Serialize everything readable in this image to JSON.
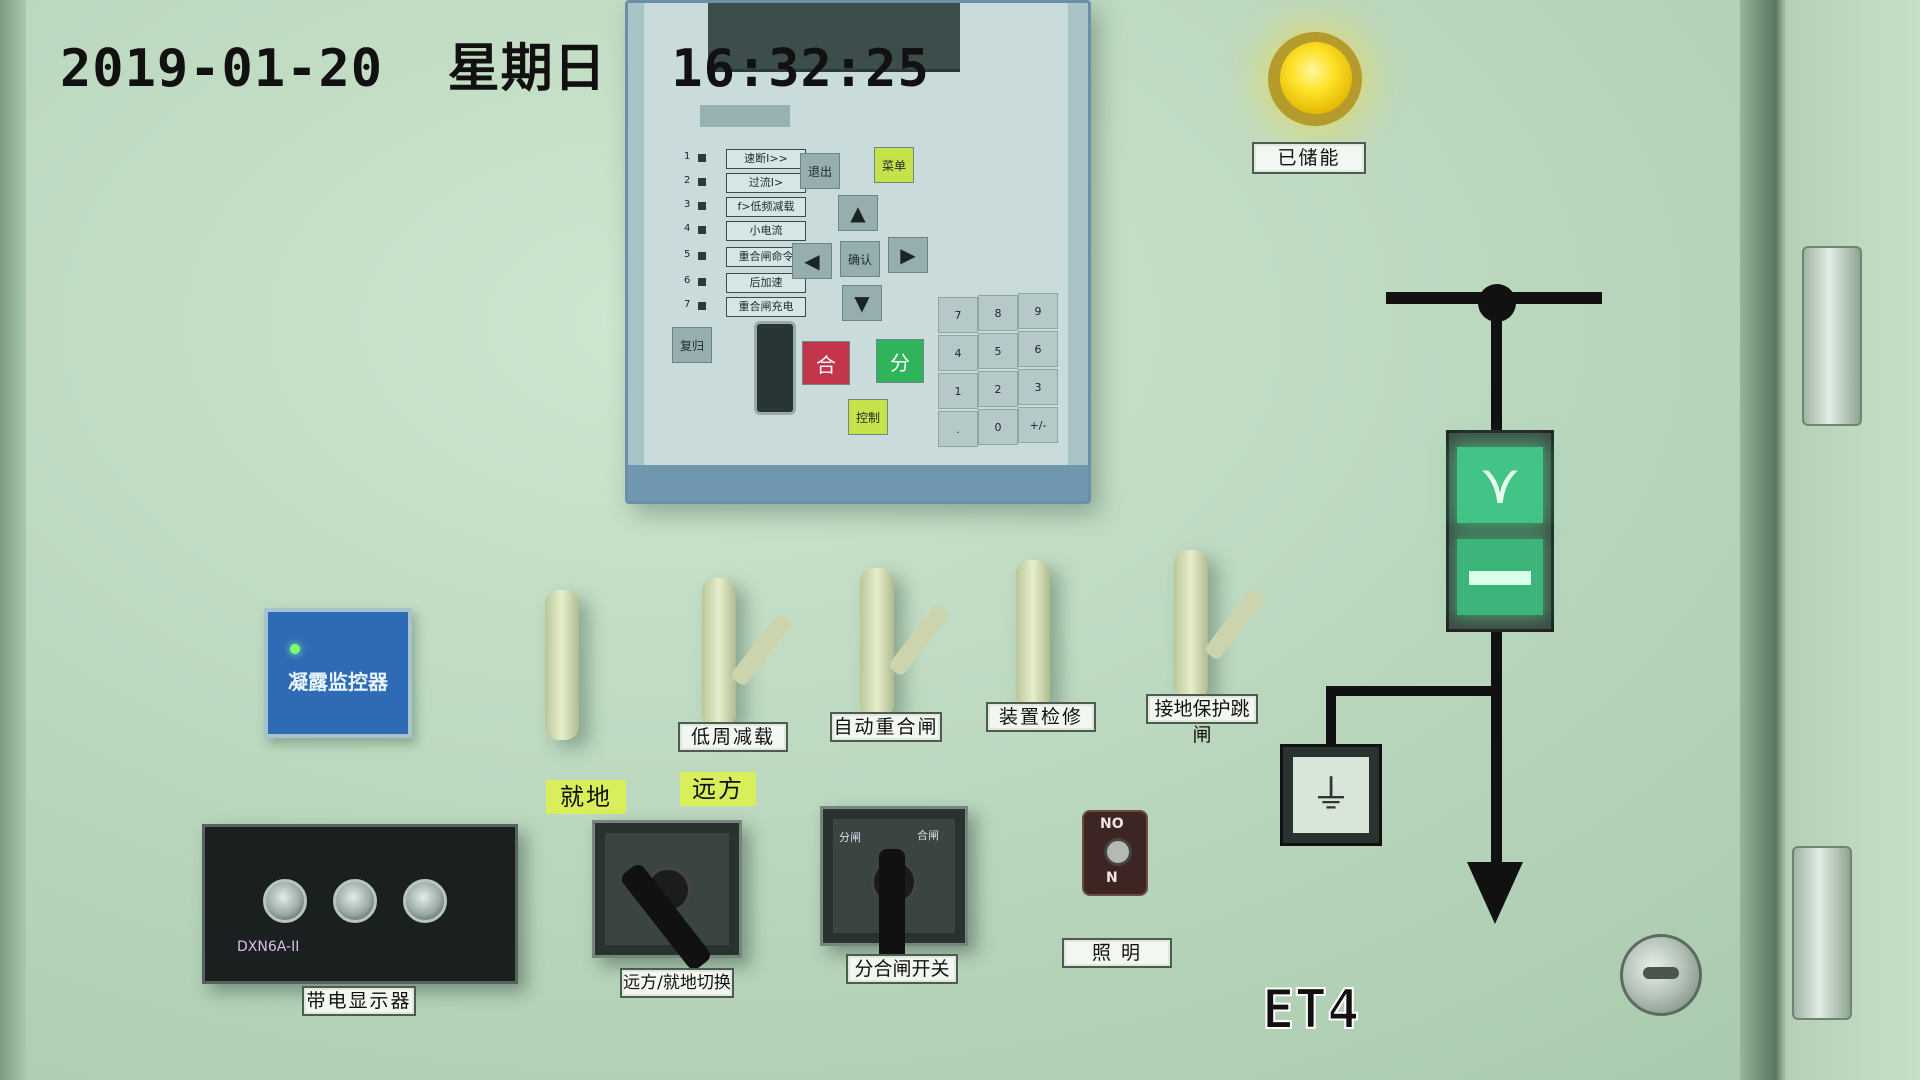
{
  "overlay": {
    "timestamp": "2019-01-20  星期日  16:32:25",
    "camera_label": "ET4"
  },
  "relay_unit": {
    "led_labels": [
      {
        "num": "1",
        "label": "速断I>>"
      },
      {
        "num": "2",
        "label": "过流I>"
      },
      {
        "num": "3",
        "label": "f>低频减载"
      },
      {
        "num": "4",
        "label": "小电流"
      },
      {
        "num": "5",
        "label": "重合闸命令"
      },
      {
        "num": "6",
        "label": "后加速"
      },
      {
        "num": "7",
        "label": "重合闸充电"
      }
    ],
    "reset_button": "复归",
    "exit_button": "退出",
    "menu_button": "菜单",
    "confirm_button": "确认",
    "close_button": "合",
    "open_button": "分",
    "control_button": "控制",
    "numpad": [
      "7",
      "8",
      "9",
      "4",
      "5",
      "6",
      "1",
      "2",
      "3",
      ".",
      "0",
      "+/-"
    ]
  },
  "status": {
    "stored_energy_label": "已储能",
    "lamp_color": "#ffe22a"
  },
  "detector": {
    "name": "凝露监控器"
  },
  "plates": [
    {
      "label": "低周减载"
    },
    {
      "label": "自动重合闸"
    },
    {
      "label": "装置检修"
    },
    {
      "label": "接地保护跳闸"
    }
  ],
  "mode_tags": {
    "local": "就地",
    "remote": "远方"
  },
  "live_display": {
    "model": "DXN6A-II",
    "label": "带电显示器"
  },
  "switches": {
    "remote_local_label": "远方/就地切换",
    "open_close_label": "分合闸开关",
    "open_side": "分闸",
    "close_side": "合闸"
  },
  "lighting": {
    "label": "照 明",
    "on_text": "NO",
    "off_text": "N"
  },
  "mimic": {
    "indicator_color": "#42c487"
  }
}
